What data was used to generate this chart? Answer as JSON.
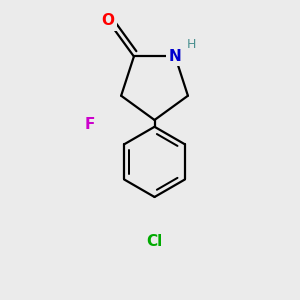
{
  "bg_color": "#ebebeb",
  "bond_color": "#000000",
  "bond_width": 1.6,
  "O_color": "#ff0000",
  "N_color": "#0000cd",
  "H_color": "#4a9090",
  "F_color": "#cc00cc",
  "Cl_color": "#00aa00",
  "font_size_atoms": 11,
  "font_size_H": 9,
  "axlim": [
    -1.8,
    1.8,
    -2.6,
    2.6
  ]
}
